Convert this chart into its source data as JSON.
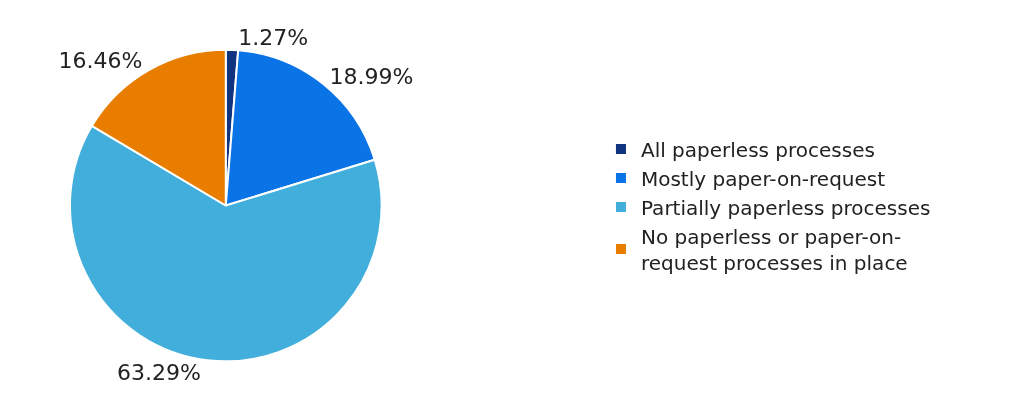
{
  "chart_data": {
    "type": "pie",
    "categories": [
      "All paperless processes",
      "Mostly paper-on-request",
      "Partially paperless processes",
      "No paperless or paper-on-request processes in place"
    ],
    "values": [
      1.27,
      18.99,
      63.29,
      16.46
    ],
    "colors": [
      "#10347f",
      "#0a73e6",
      "#42aedb",
      "#e97d00"
    ],
    "value_labels": [
      "1.27%",
      "18.99%",
      "63.29%",
      "16.46%"
    ],
    "legend": "right"
  }
}
